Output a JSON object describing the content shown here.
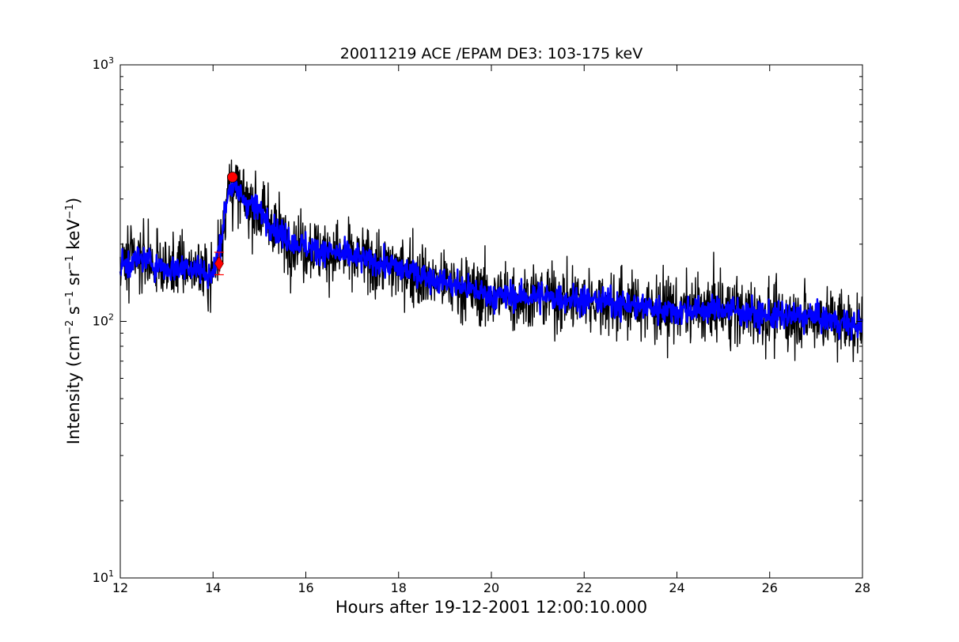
{
  "chart_data": {
    "type": "line",
    "title": "20011219 ACE /EPAM DE3: 103-175 keV",
    "xlabel": "Hours after 19-12-2001 12:00:10.000",
    "ylabel_parts": {
      "main": "Intensity (cm",
      "sup1": "−2",
      "s": " s",
      "sup2": "−1",
      "sr": " sr",
      "sup3": "−1",
      "kev": " keV",
      "sup4": "−1",
      "close": ")"
    },
    "xlim": [
      12,
      28
    ],
    "ylim": [
      10,
      1000
    ],
    "yscale": "log",
    "grid": false,
    "xticks": [
      "12",
      "14",
      "16",
      "18",
      "20",
      "22",
      "24",
      "26",
      "28"
    ],
    "yticks": {
      "base": "10",
      "exponents": [
        "1",
        "2",
        "3"
      ]
    },
    "series": [
      {
        "role": "raw",
        "color": "#000000",
        "x": [
          12.0,
          12.5,
          13.0,
          13.5,
          14.0,
          14.15,
          14.35,
          14.7,
          15.0,
          15.5,
          16.0,
          17.0,
          18.0,
          19.0,
          20.0,
          21.0,
          22.0,
          23.0,
          24.0,
          25.0,
          26.0,
          27.0,
          28.0
        ],
        "y": [
          165,
          175,
          160,
          165,
          150,
          200,
          340,
          295,
          270,
          215,
          195,
          178,
          162,
          142,
          126,
          125,
          122,
          116,
          110,
          112,
          105,
          104,
          95
        ]
      },
      {
        "role": "smoothed",
        "color": "#0000ff",
        "x": [
          12.0,
          12.5,
          13.0,
          13.5,
          14.0,
          14.15,
          14.35,
          14.7,
          15.0,
          15.5,
          16.0,
          17.0,
          18.0,
          19.0,
          20.0,
          21.0,
          22.0,
          23.0,
          24.0,
          25.0,
          26.0,
          27.0,
          28.0
        ],
        "y": [
          165,
          175,
          160,
          165,
          150,
          200,
          340,
          295,
          270,
          215,
          195,
          178,
          162,
          142,
          126,
          125,
          122,
          116,
          110,
          112,
          105,
          104,
          95
        ]
      }
    ],
    "markers": [
      {
        "shape": "diamond",
        "color": "#ff0000",
        "x": 14.13,
        "y": 168,
        "error_low": 152,
        "error_high": 186
      },
      {
        "shape": "circle",
        "color": "#ff0000",
        "x": 14.42,
        "y": 365
      }
    ]
  }
}
